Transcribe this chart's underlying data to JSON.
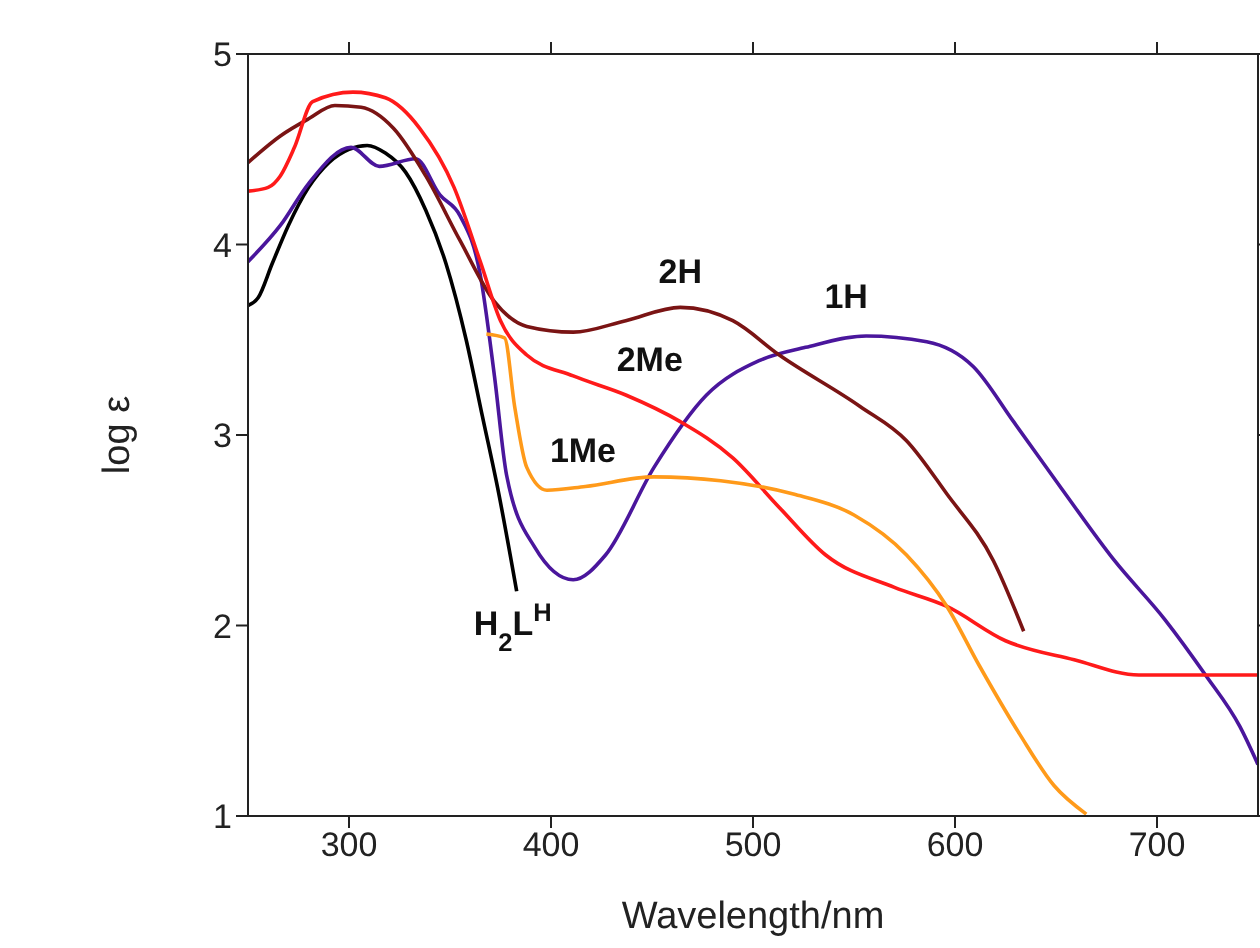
{
  "chart_data": {
    "type": "line",
    "xlabel": "Wavelength/nm",
    "ylabel": "log ε",
    "xlim": [
      250,
      750
    ],
    "xticks": [
      300,
      400,
      500,
      600,
      700
    ],
    "ylim": [
      1,
      5
    ],
    "yticks": [
      1,
      2,
      3,
      4,
      5
    ],
    "marker": "none",
    "line_style": "solid",
    "series": [
      {
        "name": "H$_{2}$L$^{H}$",
        "color": "#000000",
        "x": [
          250,
          255,
          262,
          270,
          280,
          290,
          300,
          309,
          318,
          328,
          338,
          348,
          358,
          366,
          374,
          383
        ],
        "values": [
          3.68,
          3.72,
          3.9,
          4.1,
          4.3,
          4.43,
          4.5,
          4.52,
          4.48,
          4.38,
          4.18,
          3.9,
          3.5,
          3.1,
          2.7,
          2.18
        ]
      },
      {
        "name": "1H",
        "color": "#4a169c",
        "x": [
          250,
          266,
          280,
          301,
          315,
          333,
          345,
          355,
          365,
          372,
          378,
          392,
          411,
          427,
          451,
          477,
          503,
          526,
          556,
          586,
          609,
          629,
          652,
          679,
          704,
          724,
          741,
          750
        ],
        "values": [
          3.91,
          4.1,
          4.32,
          4.51,
          4.41,
          4.45,
          4.26,
          4.15,
          3.84,
          3.31,
          2.79,
          2.41,
          2.24,
          2.37,
          2.83,
          3.21,
          3.39,
          3.46,
          3.52,
          3.49,
          3.36,
          3.07,
          2.73,
          2.34,
          2.03,
          1.74,
          1.47,
          1.27
        ]
      },
      {
        "name": "2H",
        "color": "#7a1414",
        "x": [
          250,
          266,
          280,
          293,
          306,
          322,
          338,
          355,
          372,
          388,
          411,
          437,
          464,
          490,
          513,
          553,
          576,
          596,
          619,
          634
        ],
        "values": [
          4.43,
          4.57,
          4.66,
          4.73,
          4.72,
          4.61,
          4.36,
          4.02,
          3.7,
          3.57,
          3.54,
          3.6,
          3.67,
          3.6,
          3.42,
          3.15,
          2.97,
          2.69,
          2.34,
          1.97
        ]
      },
      {
        "name": "2Me",
        "color": "#ff1a1a",
        "x": [
          250,
          260,
          266,
          273,
          282,
          302,
          318,
          335,
          352,
          365,
          375,
          388,
          411,
          437,
          464,
          490,
          513,
          536,
          570,
          596,
          625,
          659,
          691,
          720,
          750
        ],
        "values": [
          4.28,
          4.3,
          4.36,
          4.51,
          4.75,
          4.8,
          4.77,
          4.61,
          4.3,
          3.91,
          3.6,
          3.42,
          3.31,
          3.21,
          3.07,
          2.88,
          2.62,
          2.37,
          2.2,
          2.1,
          1.92,
          1.82,
          1.74,
          1.74,
          1.74
        ]
      },
      {
        "name": "1Me",
        "color": "#ff9a1a",
        "x": [
          368,
          377,
          382,
          388,
          398,
          417,
          451,
          484,
          520,
          550,
          576,
          596,
          612,
          632,
          649,
          665
        ],
        "values": [
          3.53,
          3.51,
          3.15,
          2.83,
          2.71,
          2.73,
          2.78,
          2.76,
          2.69,
          2.58,
          2.37,
          2.1,
          1.79,
          1.43,
          1.16,
          1.01
        ]
      }
    ]
  }
}
